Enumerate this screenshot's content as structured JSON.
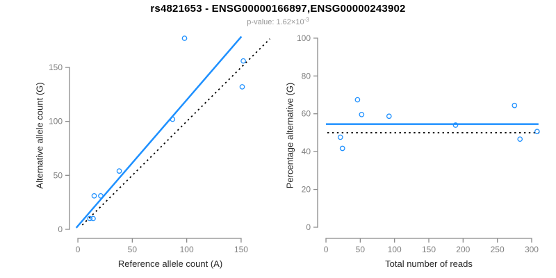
{
  "header": {
    "title": "rs4821653 - ENSG00000166897,ENSG00000243902",
    "subtitle_prefix": "p-value: ",
    "subtitle_base": "1.62×10",
    "subtitle_exponent": "-3"
  },
  "colors": {
    "line_blue": "#1E90FF",
    "marker_blue": "#1E90FF",
    "dotted_black": "#000000",
    "axis_line": "#8A8A8A",
    "tick_label": "#7F7F7F",
    "axis_label": "#262626",
    "title_text": "#000000",
    "subtitle_text": "#969696",
    "background": "#FFFFFF"
  },
  "chart_data": [
    {
      "name": "allele-counts",
      "type": "scatter",
      "title": "",
      "xlabel": "Reference allele count (A)",
      "ylabel": "Alternative allele count (G)",
      "xticks": [
        0,
        50,
        100,
        150
      ],
      "yticks": [
        0,
        50,
        100,
        150
      ],
      "xlim": [
        -7.7,
        177.5
      ],
      "ylim": [
        -8.4,
        182.2
      ],
      "grid": false,
      "marker": "open-circle",
      "points": [
        [
          11,
          10
        ],
        [
          14,
          10
        ],
        [
          15,
          31
        ],
        [
          21,
          31
        ],
        [
          38,
          54
        ],
        [
          87,
          102
        ],
        [
          98,
          177
        ],
        [
          151,
          132
        ],
        [
          152,
          156
        ]
      ],
      "lines": [
        {
          "name": "regression-line",
          "style": "solid",
          "color": "#1E90FF",
          "x1": -1.5,
          "y1": 1.4,
          "x2": 150.3,
          "y2": 178.6
        },
        {
          "name": "identity-line",
          "style": "dotted",
          "color": "#000000",
          "x1": 4,
          "y1": 4,
          "x2": 176.5,
          "y2": 176.5
        }
      ]
    },
    {
      "name": "percentage-alternative",
      "type": "scatter",
      "title": "",
      "xlabel": "Total number of reads",
      "ylabel": "Percentage alternative (G)",
      "xticks": [
        0,
        50,
        100,
        150,
        200,
        250,
        300
      ],
      "yticks": [
        0,
        20,
        40,
        60,
        80,
        100
      ],
      "xlim": [
        -12.2,
        312.2
      ],
      "ylim": [
        -5.9,
        102.9
      ],
      "grid": false,
      "marker": "open-circle",
      "points": [
        [
          21,
          47.6
        ],
        [
          24,
          41.7
        ],
        [
          46,
          67.4
        ],
        [
          52,
          59.6
        ],
        [
          92,
          58.7
        ],
        [
          189,
          54.0
        ],
        [
          275,
          64.4
        ],
        [
          283,
          46.6
        ],
        [
          308,
          50.6
        ]
      ],
      "lines": [
        {
          "name": "mean-percentage-line",
          "style": "solid",
          "color": "#1E90FF",
          "x1": 0,
          "y1": 54.5,
          "x2": 310,
          "y2": 54.5
        },
        {
          "name": "expected-50-line",
          "style": "dotted",
          "color": "#000000",
          "x1": 2,
          "y1": 50,
          "x2": 311,
          "y2": 50
        }
      ]
    }
  ]
}
